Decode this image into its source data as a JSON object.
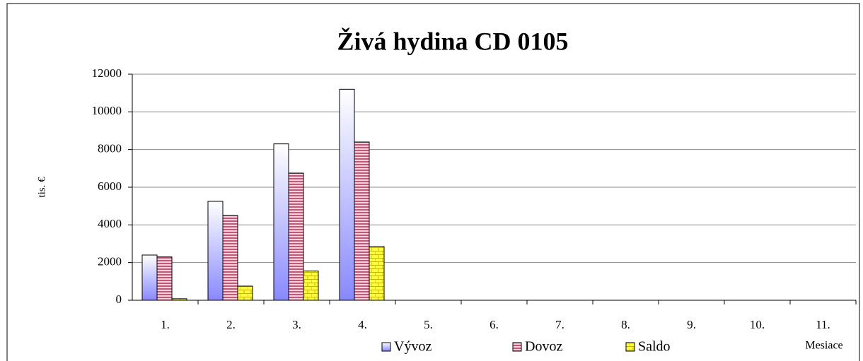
{
  "chart_data": {
    "type": "bar",
    "title": "Živá hydina CD 0105",
    "y_label": "tis. €",
    "x_label": "Mesiace",
    "categories": [
      "1.",
      "2.",
      "3.",
      "4.",
      "5.",
      "6.",
      "7.",
      "8.",
      "9.",
      "10.",
      "11."
    ],
    "series": [
      {
        "name": "Vývoz",
        "color": "#8888ff",
        "values": [
          2400,
          5250,
          8300,
          11200,
          null,
          null,
          null,
          null,
          null,
          null,
          null
        ]
      },
      {
        "name": "Dovoz",
        "color": "#c05a7a",
        "values": [
          2300,
          4500,
          6750,
          8400,
          null,
          null,
          null,
          null,
          null,
          null,
          null
        ]
      },
      {
        "name": "Saldo",
        "color": "#ffff40",
        "values": [
          80,
          750,
          1550,
          2850,
          null,
          null,
          null,
          null,
          null,
          null,
          null
        ]
      }
    ],
    "ylim": [
      0,
      12000
    ],
    "yticks": [
      0,
      2000,
      4000,
      6000,
      8000,
      10000,
      12000
    ],
    "grid": true
  }
}
